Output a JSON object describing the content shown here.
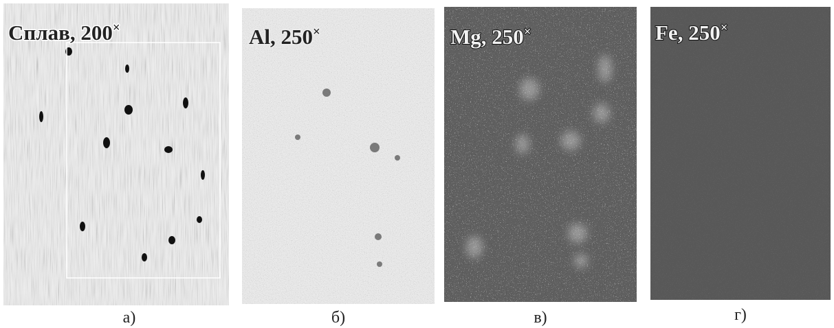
{
  "panels": [
    {
      "label": "Сплав, 200",
      "sup": "×",
      "caption": "а)"
    },
    {
      "label": "Al, 250",
      "sup": "×",
      "caption": "б)"
    },
    {
      "label": "Mg, 250",
      "sup": "×",
      "caption": "в)"
    },
    {
      "label": "Fe, 250",
      "sup": "×",
      "caption": "г)"
    }
  ]
}
